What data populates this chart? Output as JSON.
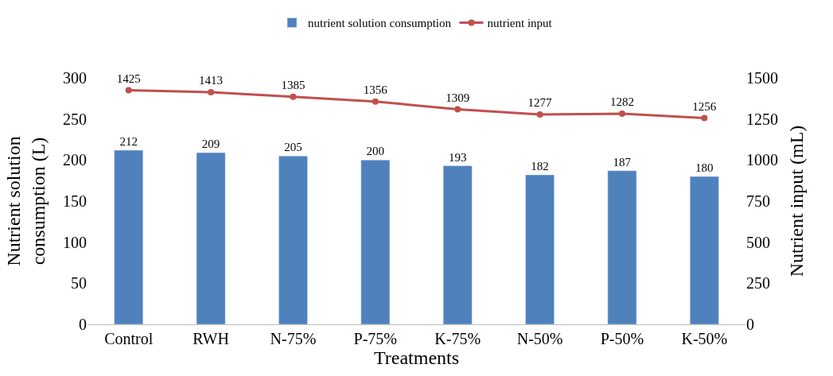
{
  "chart_data": {
    "type": "bar",
    "categories": [
      "Control",
      "RWH",
      "N-75%",
      "P-75%",
      "K-75%",
      "N-50%",
      "P-50%",
      "K-50%"
    ],
    "series": [
      {
        "name": "nutrient solution consumption",
        "color": "#4f81bd",
        "values": [
          212,
          209,
          205,
          200,
          193,
          182,
          187,
          180
        ]
      },
      {
        "name": "nutrient input",
        "type": "line",
        "axis": "y2",
        "color": "#c0504d",
        "marker": "circle",
        "values": [
          1425,
          1413,
          1385,
          1356,
          1309,
          1277,
          1282,
          1256
        ]
      }
    ],
    "xlabel": "Treatments",
    "ylabel": "Nutrient solution\nconsumption (L)",
    "y2label": "Nutrient input (mL)",
    "ylim": [
      0,
      300
    ],
    "yticks": [
      0,
      50,
      100,
      150,
      200,
      250,
      300
    ],
    "y2lim": [
      0,
      1500
    ],
    "y2ticks": [
      0,
      250,
      500,
      750,
      1000,
      1250,
      1500
    ],
    "data_labels": true,
    "legend": "top"
  }
}
